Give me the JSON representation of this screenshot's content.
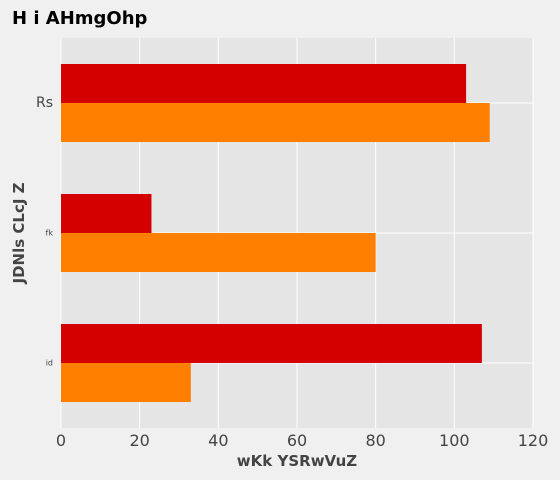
{
  "chart_data": {
    "type": "bar",
    "orientation": "horizontal",
    "title": "H i AHmgOhp",
    "xlabel": "wKk YSRwVuZ",
    "ylabel": "JDNls CLcJ Z",
    "categories": [
      "Rs",
      "fk",
      "id"
    ],
    "series": [
      {
        "color": "#d40000",
        "values": [
          103,
          23,
          107
        ]
      },
      {
        "color": "#ff7f00",
        "values": [
          109,
          80,
          33
        ]
      }
    ],
    "xlim": [
      0,
      120
    ],
    "xticks": [
      0,
      20,
      40,
      60,
      80,
      100,
      120
    ],
    "grid": true,
    "legend": "none"
  }
}
